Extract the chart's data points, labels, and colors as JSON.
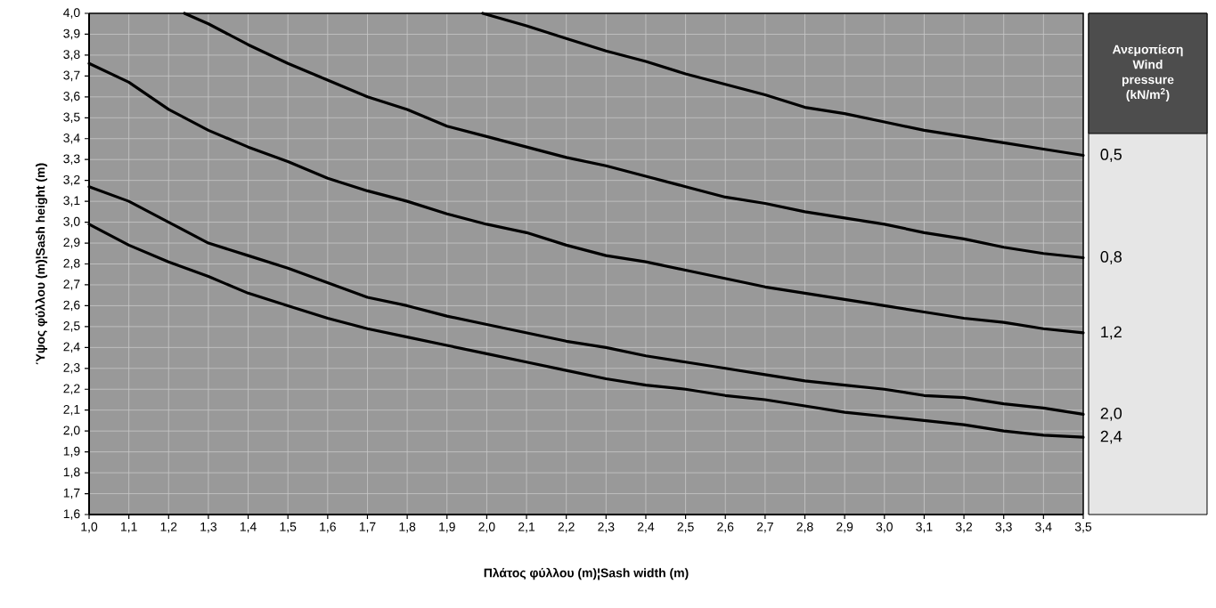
{
  "chart_data": {
    "type": "line",
    "xlabel": "Πλάτος φύλλου (m)¦Sash width (m)",
    "ylabel": "Ύψος φύλλου (m)¦Sash height (m)",
    "legend_title": "Ανεμοπίεση Wind pressure (kN/m$^{2}$)",
    "legend": "right",
    "grid": true,
    "xlim": [
      1.0,
      3.5
    ],
    "ylim": [
      1.6,
      4.0
    ],
    "xticks": [
      {
        "value": 1.0,
        "label": "1,0"
      },
      {
        "value": 1.1,
        "label": "1,1"
      },
      {
        "value": 1.2,
        "label": "1,2"
      },
      {
        "value": 1.3,
        "label": "1,3"
      },
      {
        "value": 1.4,
        "label": "1,4"
      },
      {
        "value": 1.5,
        "label": "1,5"
      },
      {
        "value": 1.6,
        "label": "1,6"
      },
      {
        "value": 1.7,
        "label": "1,7"
      },
      {
        "value": 1.8,
        "label": "1,8"
      },
      {
        "value": 1.9,
        "label": "1,9"
      },
      {
        "value": 2.0,
        "label": "2,0"
      },
      {
        "value": 2.1,
        "label": "2,1"
      },
      {
        "value": 2.2,
        "label": "2,2"
      },
      {
        "value": 2.3,
        "label": "2,3"
      },
      {
        "value": 2.4,
        "label": "2,4"
      },
      {
        "value": 2.5,
        "label": "2,5"
      },
      {
        "value": 2.6,
        "label": "2,6"
      },
      {
        "value": 2.7,
        "label": "2,7"
      },
      {
        "value": 2.8,
        "label": "2,8"
      },
      {
        "value": 2.9,
        "label": "2,9"
      },
      {
        "value": 3.0,
        "label": "3,0"
      },
      {
        "value": 3.1,
        "label": "3,1"
      },
      {
        "value": 3.2,
        "label": "3,2"
      },
      {
        "value": 3.3,
        "label": "3,3"
      },
      {
        "value": 3.4,
        "label": "3,4"
      },
      {
        "value": 3.5,
        "label": "3,5"
      }
    ],
    "yticks": [
      {
        "value": 1.6,
        "label": "1,6"
      },
      {
        "value": 1.7,
        "label": "1,7"
      },
      {
        "value": 1.8,
        "label": "1,8"
      },
      {
        "value": 1.9,
        "label": "1,9"
      },
      {
        "value": 2.0,
        "label": "2,0"
      },
      {
        "value": 2.1,
        "label": "2,1"
      },
      {
        "value": 2.2,
        "label": "2,2"
      },
      {
        "value": 2.3,
        "label": "2,3"
      },
      {
        "value": 2.4,
        "label": "2,4"
      },
      {
        "value": 2.5,
        "label": "2,5"
      },
      {
        "value": 2.6,
        "label": "2,6"
      },
      {
        "value": 2.7,
        "label": "2,7"
      },
      {
        "value": 2.8,
        "label": "2,8"
      },
      {
        "value": 2.9,
        "label": "2,9"
      },
      {
        "value": 3.0,
        "label": "3,0"
      },
      {
        "value": 3.1,
        "label": "3,1"
      },
      {
        "value": 3.2,
        "label": "3,2"
      },
      {
        "value": 3.3,
        "label": "3,3"
      },
      {
        "value": 3.4,
        "label": "3,4"
      },
      {
        "value": 3.5,
        "label": "3,5"
      },
      {
        "value": 3.6,
        "label": "3,6"
      },
      {
        "value": 3.7,
        "label": "3,7"
      },
      {
        "value": 3.8,
        "label": "3,8"
      },
      {
        "value": 3.9,
        "label": "3,9"
      },
      {
        "value": 4.0,
        "label": "4,0"
      }
    ],
    "series": [
      {
        "name": "0,5",
        "color": "#000000",
        "x": [
          1.99,
          2.1,
          2.2,
          2.3,
          2.4,
          2.5,
          2.6,
          2.7,
          2.8,
          2.9,
          3.0,
          3.1,
          3.2,
          3.3,
          3.4,
          3.5
        ],
        "values": [
          4.0,
          3.94,
          3.88,
          3.82,
          3.77,
          3.71,
          3.66,
          3.61,
          3.55,
          3.52,
          3.48,
          3.44,
          3.41,
          3.38,
          3.35,
          3.32
        ]
      },
      {
        "name": "0,8",
        "color": "#000000",
        "x": [
          1.24,
          1.3,
          1.4,
          1.5,
          1.6,
          1.7,
          1.8,
          1.9,
          2.0,
          2.1,
          2.2,
          2.3,
          2.4,
          2.5,
          2.6,
          2.7,
          2.8,
          2.9,
          3.0,
          3.1,
          3.2,
          3.3,
          3.4,
          3.5
        ],
        "values": [
          4.0,
          3.95,
          3.85,
          3.76,
          3.68,
          3.6,
          3.54,
          3.46,
          3.41,
          3.36,
          3.31,
          3.27,
          3.22,
          3.17,
          3.12,
          3.09,
          3.05,
          3.02,
          2.99,
          2.95,
          2.92,
          2.88,
          2.85,
          2.83
        ]
      },
      {
        "name": "1,2",
        "color": "#000000",
        "x": [
          1.0,
          1.1,
          1.2,
          1.3,
          1.4,
          1.5,
          1.6,
          1.7,
          1.8,
          1.9,
          2.0,
          2.1,
          2.2,
          2.3,
          2.4,
          2.5,
          2.6,
          2.7,
          2.8,
          2.9,
          3.0,
          3.1,
          3.2,
          3.3,
          3.4,
          3.5
        ],
        "values": [
          3.76,
          3.67,
          3.54,
          3.44,
          3.36,
          3.29,
          3.21,
          3.15,
          3.1,
          3.04,
          2.99,
          2.95,
          2.89,
          2.84,
          2.81,
          2.77,
          2.73,
          2.69,
          2.66,
          2.63,
          2.6,
          2.57,
          2.54,
          2.52,
          2.49,
          2.47
        ]
      },
      {
        "name": "2,0",
        "color": "#000000",
        "x": [
          1.0,
          1.1,
          1.2,
          1.3,
          1.4,
          1.5,
          1.6,
          1.7,
          1.8,
          1.9,
          2.0,
          2.1,
          2.2,
          2.3,
          2.4,
          2.5,
          2.6,
          2.7,
          2.8,
          2.9,
          3.0,
          3.1,
          3.2,
          3.3,
          3.4,
          3.5
        ],
        "values": [
          3.17,
          3.1,
          3.0,
          2.9,
          2.84,
          2.78,
          2.71,
          2.64,
          2.6,
          2.55,
          2.51,
          2.47,
          2.43,
          2.4,
          2.36,
          2.33,
          2.3,
          2.27,
          2.24,
          2.22,
          2.2,
          2.17,
          2.16,
          2.13,
          2.11,
          2.08
        ]
      },
      {
        "name": "2,4",
        "color": "#000000",
        "x": [
          1.0,
          1.1,
          1.2,
          1.3,
          1.4,
          1.5,
          1.6,
          1.7,
          1.8,
          1.9,
          2.0,
          2.1,
          2.2,
          2.3,
          2.4,
          2.5,
          2.6,
          2.7,
          2.8,
          2.9,
          3.0,
          3.1,
          3.2,
          3.3,
          3.4,
          3.5
        ],
        "values": [
          2.99,
          2.89,
          2.81,
          2.74,
          2.66,
          2.6,
          2.54,
          2.49,
          2.45,
          2.41,
          2.37,
          2.33,
          2.29,
          2.25,
          2.22,
          2.2,
          2.17,
          2.15,
          2.12,
          2.09,
          2.07,
          2.05,
          2.03,
          2.0,
          1.98,
          1.97
        ]
      }
    ]
  }
}
